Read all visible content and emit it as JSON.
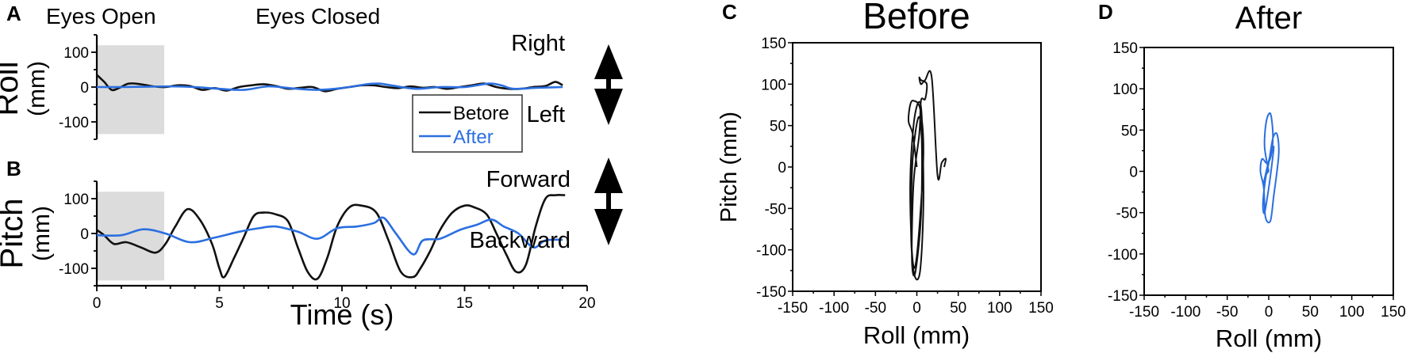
{
  "figure": {
    "panels": {
      "A": {
        "letter": "A",
        "header_left": "Eyes Open",
        "header_right": "Eyes Closed",
        "ylabel_main": "Roll",
        "ylabel_unit": "(mm)",
        "dir_up": "Right",
        "dir_down": "Left"
      },
      "B": {
        "letter": "B",
        "ylabel_main": "Pitch",
        "ylabel_unit": "(mm)",
        "dir_up": "Forward",
        "dir_down": "Backward",
        "xlabel": "Time (s)"
      },
      "C": {
        "letter": "C",
        "title": "Before",
        "xlabel": "Roll (mm)",
        "ylabel": "Pitch (mm)"
      },
      "D": {
        "letter": "D",
        "title": "After",
        "xlabel": "Roll (mm)",
        "ylabel": "Pitch (mm)"
      }
    },
    "legend": {
      "items": [
        {
          "label": "Betore",
          "color": "#000000"
        },
        {
          "label": "After",
          "color": "#2b6fe0"
        }
      ]
    },
    "colors": {
      "before": "#111111",
      "after": "#2b6fe0",
      "shade": "#dcdcdc"
    }
  },
  "chart_data": [
    {
      "id": "A",
      "type": "line",
      "title": "",
      "xlabel": "",
      "ylabel": "Roll (mm)",
      "xlim": [
        0,
        20
      ],
      "ylim": [
        -150,
        150
      ],
      "yticks": [
        -100,
        0,
        100
      ],
      "shaded_region": {
        "x": [
          0,
          2.75
        ],
        "label": "Eyes Open"
      },
      "annotations": [
        "Eyes Open",
        "Eyes Closed",
        "Right",
        "Left"
      ],
      "legend_position": "inside-lower-right",
      "series": [
        {
          "name": "Betore",
          "color": "#111111",
          "x": [
            0,
            0.3,
            0.6,
            0.9,
            1.3,
            1.8,
            2.3,
            2.8,
            3.3,
            3.8,
            4.3,
            4.8,
            5.3,
            5.8,
            6.3,
            6.8,
            7.3,
            7.8,
            8.3,
            8.8,
            9.3,
            9.8,
            10.3,
            10.8,
            11.3,
            11.8,
            12.3,
            12.8,
            13.3,
            13.8,
            14.3,
            14.8,
            15.3,
            15.8,
            16.3,
            16.8,
            17.3,
            17.8,
            18.3,
            18.7,
            19.0
          ],
          "y": [
            35,
            15,
            -8,
            -3,
            10,
            8,
            2,
            0,
            5,
            3,
            -8,
            -3,
            -10,
            0,
            5,
            8,
            3,
            -5,
            -2,
            0,
            -12,
            -5,
            0,
            5,
            5,
            0,
            -3,
            2,
            -2,
            0,
            -5,
            0,
            5,
            10,
            0,
            -5,
            -5,
            0,
            3,
            15,
            5
          ]
        },
        {
          "name": "After",
          "color": "#2b6fe0",
          "x": [
            0,
            1,
            2,
            3,
            4,
            5,
            6,
            7,
            8,
            9,
            10,
            11,
            11.5,
            12,
            13,
            14,
            15,
            16,
            16.5,
            17,
            18,
            19
          ],
          "y": [
            0,
            0,
            1,
            2,
            0,
            -5,
            -8,
            2,
            -4,
            -8,
            -3,
            8,
            10,
            5,
            -5,
            0,
            0,
            10,
            5,
            -5,
            -2,
            0
          ]
        }
      ]
    },
    {
      "id": "B",
      "type": "line",
      "xlabel": "Time (s)",
      "ylabel": "Pitch (mm)",
      "xlim": [
        0,
        20
      ],
      "ylim": [
        -150,
        150
      ],
      "xticks": [
        0,
        5,
        10,
        15,
        20
      ],
      "yticks": [
        -100,
        0,
        100
      ],
      "shaded_region": {
        "x": [
          0,
          2.75
        ]
      },
      "annotations": [
        "Forward",
        "Backward"
      ],
      "series": [
        {
          "name": "Betore",
          "color": "#111111",
          "x": [
            0,
            0.3,
            0.7,
            1.2,
            1.8,
            2.4,
            2.8,
            3.2,
            3.7,
            4.2,
            4.7,
            5.0,
            5.2,
            5.6,
            6.0,
            6.4,
            6.8,
            7.3,
            7.8,
            8.2,
            8.6,
            9.0,
            9.4,
            9.8,
            10.3,
            10.8,
            11.4,
            11.9,
            12.4,
            12.9,
            13.2,
            13.6,
            14.0,
            14.5,
            15.0,
            15.4,
            15.9,
            16.3,
            16.7,
            17.1,
            17.5,
            17.9,
            18.3,
            18.7,
            19.1
          ],
          "y": [
            10,
            -5,
            -30,
            -25,
            -40,
            -55,
            -30,
            20,
            70,
            40,
            -30,
            -100,
            -125,
            -70,
            -10,
            50,
            60,
            55,
            35,
            -40,
            -110,
            -130,
            -70,
            20,
            75,
            80,
            60,
            -20,
            -110,
            -125,
            -100,
            -50,
            10,
            60,
            80,
            75,
            55,
            0,
            -60,
            -110,
            -90,
            20,
            100,
            110,
            110
          ]
        },
        {
          "name": "After",
          "color": "#2b6fe0",
          "x": [
            0,
            1,
            1.9,
            2.8,
            3.8,
            4.8,
            5.8,
            6.6,
            7.3,
            8.2,
            9.0,
            9.8,
            10.6,
            11.3,
            11.7,
            12.2,
            12.9,
            13.3,
            14.0,
            14.8,
            15.5,
            16.1,
            16.6,
            17.2,
            17.8,
            18.3,
            19.0
          ],
          "y": [
            -5,
            -5,
            12,
            0,
            -25,
            -12,
            5,
            15,
            20,
            5,
            -15,
            15,
            20,
            30,
            45,
            0,
            -60,
            -20,
            -15,
            10,
            25,
            40,
            20,
            0,
            -40,
            -20,
            -18
          ]
        }
      ]
    },
    {
      "id": "C",
      "type": "line",
      "title": "Before",
      "xlabel": "Roll (mm)",
      "ylabel": "Pitch (mm)",
      "xlim": [
        -150,
        150
      ],
      "ylim": [
        -150,
        150
      ],
      "xticks": [
        -150,
        -100,
        -50,
        0,
        50,
        100,
        150
      ],
      "yticks": [
        -150,
        -100,
        -50,
        0,
        50,
        100,
        150
      ],
      "series": [
        {
          "name": "Before",
          "color": "#111111",
          "x": [
            0,
            -5,
            -10,
            -8,
            -4,
            4,
            8,
            4,
            -2,
            -6,
            -8,
            -4,
            2,
            6,
            8,
            4,
            -3,
            -7,
            -5,
            2,
            6,
            5,
            -2,
            -6,
            -4,
            3,
            5,
            10,
            12,
            5,
            3,
            5,
            10,
            18,
            25,
            30,
            35,
            33
          ],
          "y": [
            0,
            40,
            55,
            75,
            80,
            70,
            20,
            -60,
            -120,
            -100,
            -20,
            50,
            78,
            60,
            -40,
            -125,
            -130,
            -80,
            10,
            60,
            30,
            -60,
            -128,
            -110,
            -20,
            40,
            80,
            82,
            100,
            105,
            108,
            100,
            105,
            108,
            -10,
            5,
            10,
            0
          ]
        }
      ]
    },
    {
      "id": "D",
      "type": "line",
      "title": "After",
      "xlabel": "Roll (mm)",
      "ylabel": "Pitch (mm)",
      "xlim": [
        -150,
        150
      ],
      "ylim": [
        -150,
        150
      ],
      "xticks": [
        -150,
        -100,
        -50,
        0,
        50,
        100,
        150
      ],
      "yticks": [
        -150,
        -100,
        -50,
        0,
        50,
        100,
        150
      ],
      "series": [
        {
          "name": "After",
          "color": "#2b6fe0",
          "x": [
            0,
            -5,
            -3,
            2,
            5,
            3,
            -2,
            -8,
            -10,
            -6,
            -4,
            2,
            6,
            12,
            10,
            5,
            0,
            -4,
            -7,
            -5,
            0,
            4,
            6,
            2,
            -3,
            -6,
            -4,
            0
          ],
          "y": [
            0,
            30,
            60,
            70,
            45,
            20,
            10,
            15,
            0,
            -20,
            -55,
            -60,
            -30,
            20,
            45,
            40,
            10,
            -10,
            -40,
            -50,
            -20,
            10,
            30,
            20,
            0,
            -15,
            -5,
            0
          ]
        }
      ]
    }
  ]
}
